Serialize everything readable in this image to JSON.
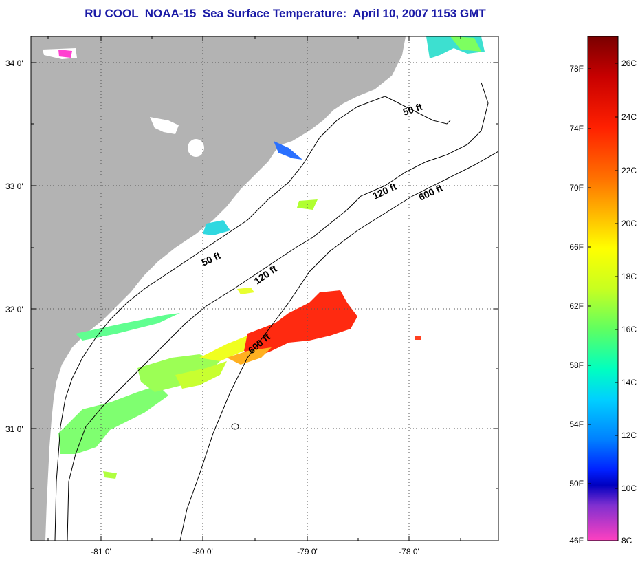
{
  "title": "RU COOL  NOAA-15  Sea Surface Temperature:  April 10, 2007 1153 GMT",
  "map": {
    "longitude_ticks": [
      "-81 0'",
      "-80 0'",
      "-79 0'",
      "-78 0'"
    ],
    "latitude_ticks": [
      "34 0'",
      "33 0'",
      "32 0'",
      "31 0'"
    ],
    "contour_labels": [
      "50 ft",
      "120 ft",
      "600 ft",
      "50 ft",
      "120 ft",
      "600 ft"
    ],
    "colors": {
      "land": "#b3b3b3",
      "ocean": "#ffffff",
      "grid": "#555555"
    }
  },
  "colorbar": {
    "fahrenheit_labels": [
      "78F",
      "74F",
      "70F",
      "66F",
      "62F",
      "58F",
      "54F",
      "50F",
      "46F"
    ],
    "celsius_labels": [
      "26C",
      "24C",
      "22C",
      "20C",
      "18C",
      "16C",
      "14C",
      "12C",
      "10C",
      "8C"
    ],
    "gradient_colors": [
      "#7a0000",
      "#c80000",
      "#ff2000",
      "#ff7000",
      "#ffc000",
      "#ffff00",
      "#c8ff20",
      "#60ff60",
      "#00ffc0",
      "#00d0ff",
      "#0080ff",
      "#0020ff",
      "#0000c0",
      "#8030d0",
      "#ff40e0",
      "#ff40c0"
    ]
  }
}
